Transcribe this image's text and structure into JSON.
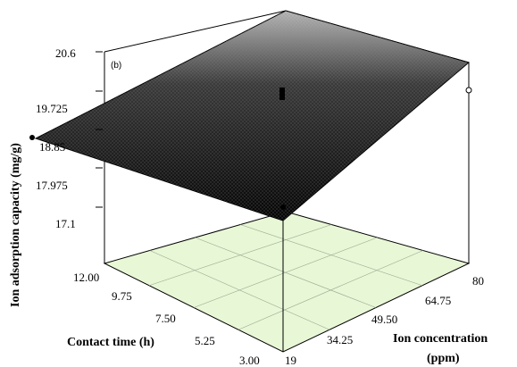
{
  "chart_data": {
    "type": "surface3d",
    "panel_label": "(b)",
    "zlabel": "Ion adsorption capacity (mg/g)",
    "ylabel": "Contact time (h)",
    "xlabel_line1": "Ion concentration",
    "xlabel_line2": "(ppm)",
    "z_ticks": [
      "17.1",
      "17.975",
      "18.85",
      "19.725",
      "20.6"
    ],
    "y_ticks": [
      "3.00",
      "5.25",
      "7.50",
      "9.75",
      "12.00"
    ],
    "x_ticks": [
      "19",
      "34.25",
      "49.50",
      "64.75",
      "80"
    ],
    "x_range": [
      19,
      80
    ],
    "y_range": [
      3,
      12
    ],
    "z_range": [
      17.1,
      20.6
    ],
    "surface_corners": [
      {
        "ion_concentration": 19,
        "contact_time": 3.0,
        "capacity": 17.1
      },
      {
        "ion_concentration": 80,
        "contact_time": 3.0,
        "capacity": 19.45
      },
      {
        "ion_concentration": 19,
        "contact_time": 12.0,
        "capacity": 18.85
      },
      {
        "ion_concentration": 80,
        "contact_time": 12.0,
        "capacity": 20.6
      }
    ],
    "colors": {
      "surface_light": "#b8b8b8",
      "surface_dark": "#050505",
      "floor": "#e8f7d6",
      "box": "#000000"
    }
  }
}
